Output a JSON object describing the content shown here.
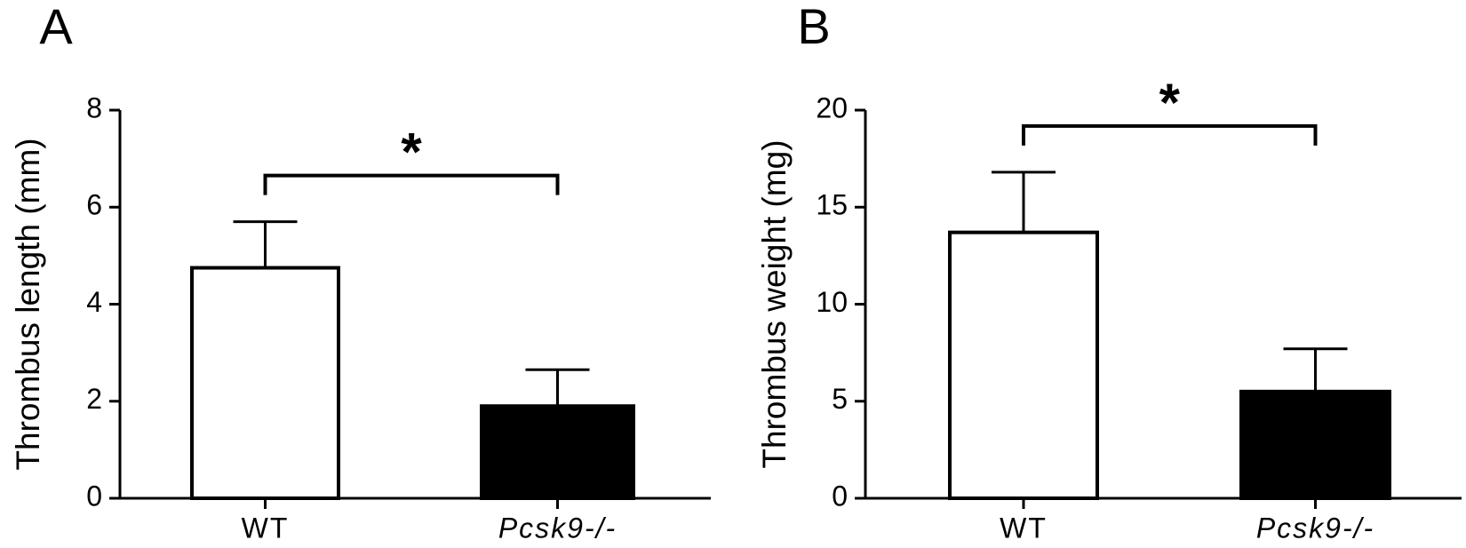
{
  "chart_data": [
    {
      "type": "bar",
      "panel_label": "A",
      "ylabel": "Thrombus length (mm)",
      "categories": [
        "WT",
        "Pcsk9-/-"
      ],
      "values": [
        4.75,
        1.9
      ],
      "errors": [
        0.95,
        0.75
      ],
      "colors": [
        "#ffffff",
        "#000000"
      ],
      "ylim": [
        0,
        8
      ],
      "yticks": [
        0,
        2,
        4,
        6,
        8
      ],
      "annotation": "*"
    },
    {
      "type": "bar",
      "panel_label": "B",
      "ylabel": "Thrombus weight (mg)",
      "categories": [
        "WT",
        "Pcsk9-/-"
      ],
      "values": [
        13.7,
        5.5
      ],
      "errors": [
        3.1,
        2.2
      ],
      "colors": [
        "#ffffff",
        "#000000"
      ],
      "ylim": [
        0,
        20
      ],
      "yticks": [
        0,
        5,
        10,
        15,
        20
      ],
      "annotation": "*"
    }
  ]
}
